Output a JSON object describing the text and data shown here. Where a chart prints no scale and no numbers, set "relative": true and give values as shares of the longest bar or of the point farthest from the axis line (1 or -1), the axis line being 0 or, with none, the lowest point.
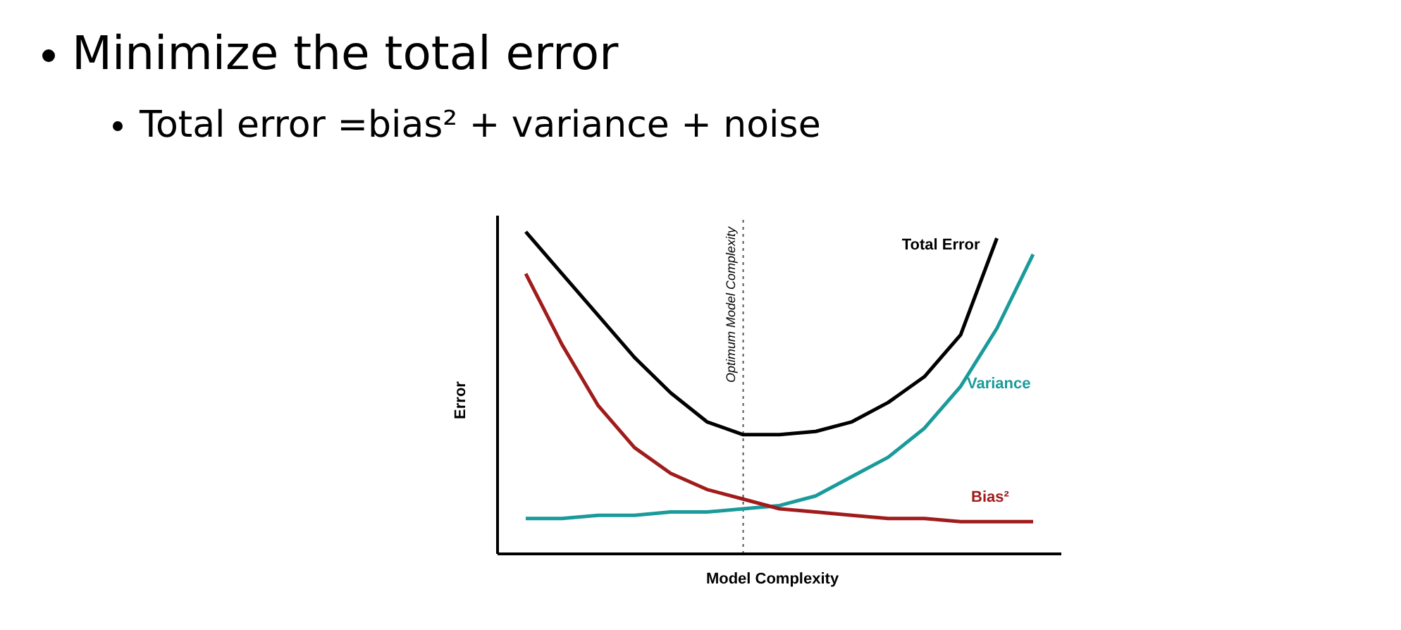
{
  "chart_data": {
    "type": "line",
    "title": "Minimize the total error",
    "subtitle": "Total error =bias² + variance + noise",
    "xlabel": "Model Complexity",
    "ylabel": "Error",
    "relative": true,
    "marker": "none",
    "grid": false,
    "legend": false,
    "categories": [
      null,
      null,
      null,
      null,
      null,
      null,
      null,
      null,
      null,
      null,
      null,
      null,
      null,
      null,
      null
    ],
    "series": [
      {
        "name": "Total Error",
        "color": "#000000",
        "values": [
          1,
          0.87,
          0.74,
          0.61,
          0.5,
          0.41,
          0.37,
          0.37,
          0.38,
          0.41,
          0.47,
          0.55,
          0.68,
          0.98,
          null
        ]
      },
      {
        "name": "Variance",
        "color": "#1a9a9a",
        "values": [
          0.11,
          0.11,
          0.12,
          0.12,
          0.13,
          0.13,
          0.14,
          0.15,
          0.18,
          0.24,
          0.3,
          0.39,
          0.52,
          0.7,
          0.93
        ]
      },
      {
        "name": "Bias²",
        "color": "#a01c1c",
        "values": [
          0.87,
          0.65,
          0.46,
          0.33,
          0.25,
          0.2,
          0.17,
          0.14,
          0.13,
          0.12,
          0.11,
          0.11,
          0.1,
          0.1,
          0.1
        ]
      }
    ],
    "annotations": [
      "Optimum Model Complexity"
    ]
  }
}
